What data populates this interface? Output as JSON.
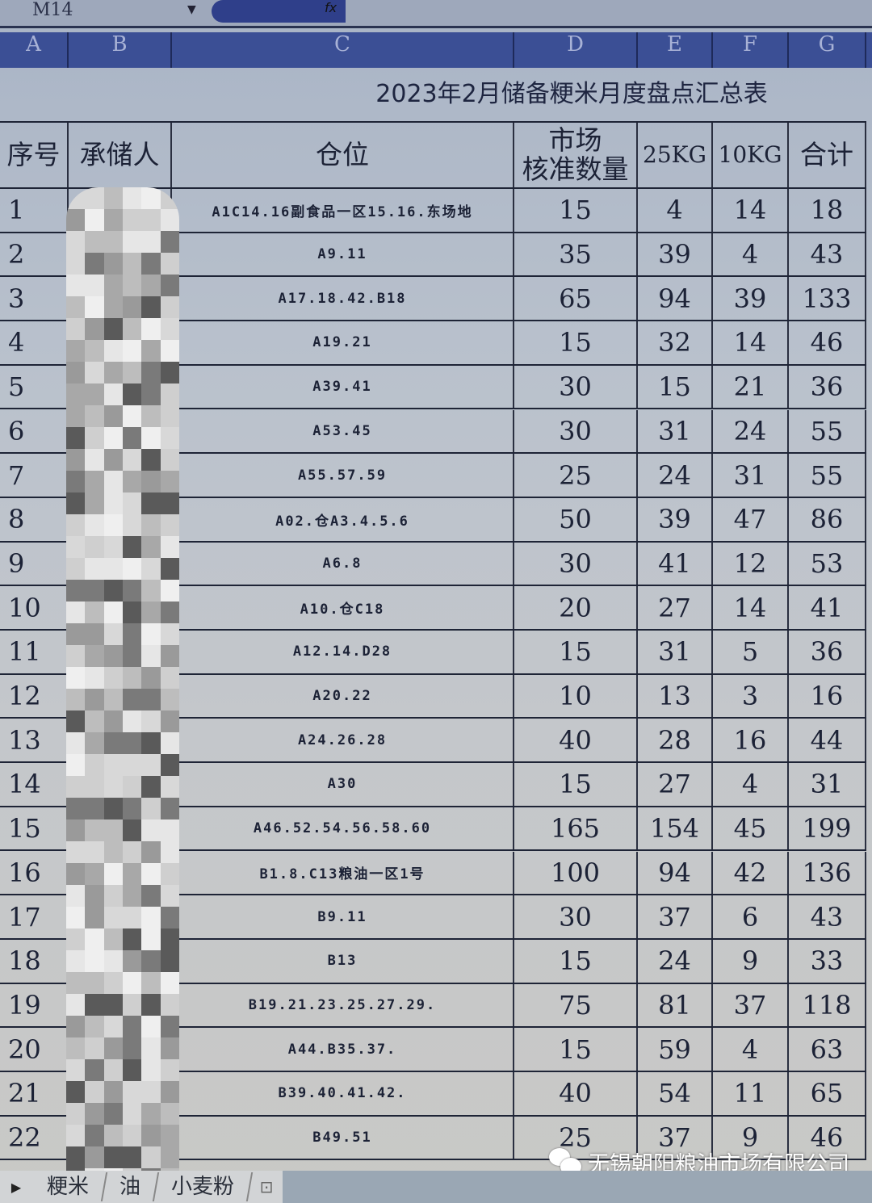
{
  "formula_bar": {
    "name_box": "M14",
    "fx_label": "fx"
  },
  "column_letters": [
    "A",
    "B",
    "C",
    "D",
    "E",
    "F",
    "G"
  ],
  "sheet": {
    "title": "2023年2月储备粳米月度盘点汇总表",
    "headers": [
      "序号",
      "承储人",
      "仓位",
      "市场\n核准数量",
      "25KG",
      "10KG",
      "合计"
    ],
    "rows": [
      {
        "no": "1",
        "location": "A1C14.16副食品一区15.16.东场地",
        "approved": "15",
        "kg25": "4",
        "kg10": "14",
        "total": "18"
      },
      {
        "no": "2",
        "location": "A9.11",
        "approved": "35",
        "kg25": "39",
        "kg10": "4",
        "total": "43"
      },
      {
        "no": "3",
        "location": "A17.18.42.B18",
        "approved": "65",
        "kg25": "94",
        "kg10": "39",
        "total": "133"
      },
      {
        "no": "4",
        "location": "A19.21",
        "approved": "15",
        "kg25": "32",
        "kg10": "14",
        "total": "46"
      },
      {
        "no": "5",
        "location": "A39.41",
        "approved": "30",
        "kg25": "15",
        "kg10": "21",
        "total": "36"
      },
      {
        "no": "6",
        "location": "A53.45",
        "approved": "30",
        "kg25": "31",
        "kg10": "24",
        "total": "55"
      },
      {
        "no": "7",
        "location": "A55.57.59",
        "approved": "25",
        "kg25": "24",
        "kg10": "31",
        "total": "55"
      },
      {
        "no": "8",
        "location": "A02.仓A3.4.5.6",
        "approved": "50",
        "kg25": "39",
        "kg10": "47",
        "total": "86"
      },
      {
        "no": "9",
        "location": "A6.8",
        "approved": "30",
        "kg25": "41",
        "kg10": "12",
        "total": "53"
      },
      {
        "no": "10",
        "location": "A10.仓C18",
        "approved": "20",
        "kg25": "27",
        "kg10": "14",
        "total": "41"
      },
      {
        "no": "11",
        "location": "A12.14.D28",
        "approved": "15",
        "kg25": "31",
        "kg10": "5",
        "total": "36"
      },
      {
        "no": "12",
        "location": "A20.22",
        "approved": "10",
        "kg25": "13",
        "kg10": "3",
        "total": "16"
      },
      {
        "no": "13",
        "location": "A24.26.28",
        "approved": "40",
        "kg25": "28",
        "kg10": "16",
        "total": "44"
      },
      {
        "no": "14",
        "location": "A30",
        "approved": "15",
        "kg25": "27",
        "kg10": "4",
        "total": "31"
      },
      {
        "no": "15",
        "location": "A46.52.54.56.58.60",
        "approved": "165",
        "kg25": "154",
        "kg10": "45",
        "total": "199"
      },
      {
        "no": "16",
        "location": "B1.8.C13粮油一区1号",
        "approved": "100",
        "kg25": "94",
        "kg10": "42",
        "total": "136"
      },
      {
        "no": "17",
        "location": "B9.11",
        "approved": "30",
        "kg25": "37",
        "kg10": "6",
        "total": "43"
      },
      {
        "no": "18",
        "location": "B13",
        "approved": "15",
        "kg25": "24",
        "kg10": "9",
        "total": "33"
      },
      {
        "no": "19",
        "location": "B19.21.23.25.27.29.",
        "approved": "75",
        "kg25": "81",
        "kg10": "37",
        "total": "118"
      },
      {
        "no": "20",
        "location": "A44.B35.37.",
        "approved": "15",
        "kg25": "59",
        "kg10": "4",
        "total": "63"
      },
      {
        "no": "21",
        "location": "B39.40.41.42.",
        "approved": "40",
        "kg25": "54",
        "kg10": "11",
        "total": "65"
      },
      {
        "no": "22",
        "location": "B49.51",
        "approved": "25",
        "kg25": "37",
        "kg10": "9",
        "total": "46"
      }
    ]
  },
  "sheet_tabs": [
    "粳米",
    "油",
    "小麦粉"
  ],
  "watermark": {
    "icon": "wechat-icon",
    "text": "无锡朝阳粮油市场有限公司"
  }
}
